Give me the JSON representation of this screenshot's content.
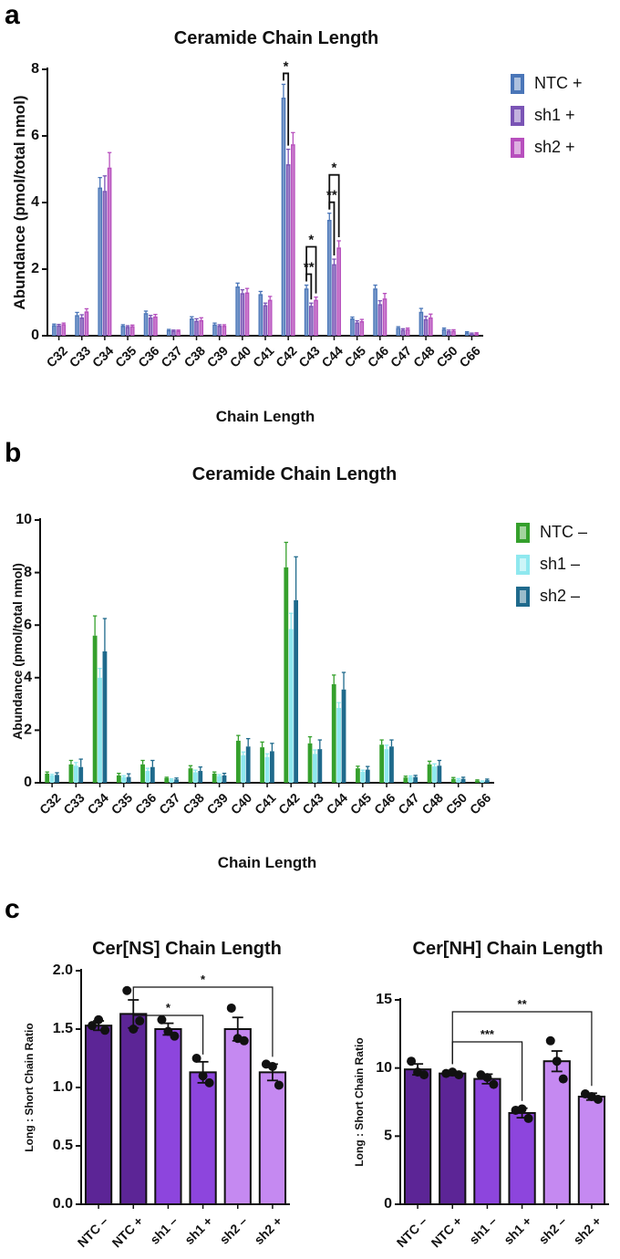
{
  "panels": [
    {
      "letter": "a"
    },
    {
      "letter": "b"
    },
    {
      "letter": "c"
    }
  ],
  "colors": {
    "NTC_plus": "#4a76b8",
    "sh1_plus": "#7a54b5",
    "sh2_plus": "#b74fbd",
    "NTC_minus": "#35a02c",
    "sh1_minus": "#8fe8ef",
    "sh2_minus": "#1f6a8c",
    "c_bars": [
      "#5c2596",
      "#5c2596",
      "#8d45dd",
      "#8d45dd",
      "#c589f1",
      "#c589f1"
    ]
  },
  "chart_data": [
    {
      "type": "bar",
      "title": "Ceramide Chain Length",
      "xlabel": "Chain Length",
      "ylabel": "Abundance (pmol/total nmol)",
      "ylim": [
        0,
        8
      ],
      "yticks": [
        "0",
        "2",
        "4",
        "6",
        "8"
      ],
      "categories": [
        "C32",
        "C33",
        "C34",
        "C35",
        "C36",
        "C37",
        "C38",
        "C39",
        "C40",
        "C41",
        "C42",
        "C43",
        "C44",
        "C45",
        "C46",
        "C47",
        "C48",
        "C50",
        "C66"
      ],
      "legend": "top-right",
      "series": [
        {
          "name": "NTC +",
          "values": [
            0.32,
            0.62,
            4.45,
            0.3,
            0.68,
            0.17,
            0.52,
            0.34,
            1.48,
            1.25,
            7.15,
            1.42,
            3.48,
            0.52,
            1.42,
            0.24,
            0.72,
            0.2,
            0.1
          ],
          "errors": [
            0.03,
            0.08,
            0.3,
            0.03,
            0.06,
            0.02,
            0.05,
            0.04,
            0.1,
            0.08,
            0.4,
            0.1,
            0.2,
            0.04,
            0.1,
            0.03,
            0.1,
            0.03,
            0.02
          ]
        },
        {
          "name": "sh1 +",
          "values": [
            0.31,
            0.55,
            4.35,
            0.27,
            0.55,
            0.15,
            0.45,
            0.3,
            1.28,
            0.92,
            5.15,
            0.9,
            2.15,
            0.4,
            0.95,
            0.18,
            0.5,
            0.14,
            0.06
          ],
          "errors": [
            0.03,
            0.08,
            0.45,
            0.03,
            0.06,
            0.02,
            0.06,
            0.03,
            0.1,
            0.06,
            0.45,
            0.08,
            0.15,
            0.05,
            0.1,
            0.03,
            0.08,
            0.03,
            0.02
          ]
        },
        {
          "name": "sh2 +",
          "values": [
            0.35,
            0.73,
            5.05,
            0.29,
            0.58,
            0.15,
            0.47,
            0.3,
            1.3,
            1.08,
            5.75,
            1.08,
            2.65,
            0.44,
            1.12,
            0.2,
            0.55,
            0.15,
            0.07
          ],
          "errors": [
            0.03,
            0.08,
            0.45,
            0.03,
            0.06,
            0.02,
            0.07,
            0.03,
            0.12,
            0.1,
            0.35,
            0.08,
            0.2,
            0.05,
            0.15,
            0.03,
            0.1,
            0.03,
            0.02
          ]
        }
      ],
      "significance": [
        {
          "category": "C42",
          "from": "NTC +",
          "to": "sh1 +",
          "label": "*"
        },
        {
          "category": "C43",
          "from": "NTC +",
          "to": "sh1 +",
          "label": "**"
        },
        {
          "category": "C43",
          "from": "NTC +",
          "to": "sh2 +",
          "label": "*"
        },
        {
          "category": "C44",
          "from": "NTC +",
          "to": "sh1 +",
          "label": "**"
        },
        {
          "category": "C44",
          "from": "NTC +",
          "to": "sh2 +",
          "label": "*"
        }
      ]
    },
    {
      "type": "bar",
      "title": "Ceramide Chain Length",
      "xlabel": "Chain Length",
      "ylabel": "Abundance (pmol/total nmol)",
      "ylim": [
        0,
        10
      ],
      "yticks": [
        "0",
        "2",
        "4",
        "6",
        "8",
        "10"
      ],
      "categories": [
        "C32",
        "C33",
        "C34",
        "C35",
        "C36",
        "C37",
        "C38",
        "C39",
        "C40",
        "C41",
        "C42",
        "C43",
        "C44",
        "C45",
        "C46",
        "C47",
        "C48",
        "C50",
        "C66"
      ],
      "legend": "top-right",
      "series": [
        {
          "name": "NTC –",
          "values": [
            0.35,
            0.7,
            5.6,
            0.28,
            0.7,
            0.18,
            0.55,
            0.35,
            1.6,
            1.35,
            8.2,
            1.5,
            3.75,
            0.55,
            1.45,
            0.2,
            0.7,
            0.15,
            0.08
          ],
          "errors": [
            0.06,
            0.15,
            0.75,
            0.08,
            0.15,
            0.03,
            0.1,
            0.06,
            0.2,
            0.2,
            0.95,
            0.25,
            0.35,
            0.08,
            0.18,
            0.05,
            0.12,
            0.05,
            0.03
          ]
        },
        {
          "name": "sh1 –",
          "values": [
            0.28,
            0.65,
            4.0,
            0.22,
            0.45,
            0.12,
            0.4,
            0.26,
            1.05,
            0.98,
            5.85,
            1.1,
            2.85,
            0.42,
            1.28,
            0.22,
            0.62,
            0.12,
            0.05
          ],
          "errors": [
            0.04,
            0.12,
            0.35,
            0.05,
            0.1,
            0.03,
            0.08,
            0.05,
            0.12,
            0.12,
            0.6,
            0.15,
            0.2,
            0.06,
            0.15,
            0.04,
            0.1,
            0.04,
            0.02
          ]
        },
        {
          "name": "sh2 –",
          "values": [
            0.3,
            0.6,
            5.0,
            0.22,
            0.6,
            0.13,
            0.45,
            0.28,
            1.38,
            1.2,
            6.95,
            1.28,
            3.55,
            0.5,
            1.38,
            0.22,
            0.65,
            0.15,
            0.1
          ],
          "errors": [
            0.08,
            0.3,
            1.25,
            0.12,
            0.25,
            0.05,
            0.15,
            0.08,
            0.3,
            0.3,
            1.65,
            0.35,
            0.65,
            0.12,
            0.25,
            0.06,
            0.2,
            0.06,
            0.04
          ]
        }
      ]
    },
    {
      "type": "bar",
      "title": "Cer[NS] Chain Length",
      "xlabel": "",
      "ylabel": "Long : Short Chain Ratio",
      "ylim": [
        0,
        2.0
      ],
      "yticks": [
        "0.0",
        "0.5",
        "1.0",
        "1.5",
        "2.0"
      ],
      "categories": [
        "NTC –",
        "NTC +",
        "sh1 –",
        "sh1 +",
        "sh2 –",
        "sh2 +"
      ],
      "values": [
        1.53,
        1.63,
        1.5,
        1.13,
        1.5,
        1.13
      ],
      "errors": [
        0.04,
        0.12,
        0.05,
        0.09,
        0.1,
        0.07
      ],
      "points": [
        [
          1.53,
          1.58,
          1.49
        ],
        [
          1.83,
          1.5,
          1.57
        ],
        [
          1.58,
          1.48,
          1.44
        ],
        [
          1.25,
          1.1,
          1.04
        ],
        [
          1.68,
          1.42,
          1.4
        ],
        [
          1.2,
          1.18,
          1.02
        ]
      ],
      "significance": [
        {
          "from": "NTC +",
          "to": "sh1 +",
          "label": "*"
        },
        {
          "from": "NTC +",
          "to": "sh2 +",
          "label": "*"
        }
      ]
    },
    {
      "type": "bar",
      "title": "Cer[NH] Chain Length",
      "xlabel": "",
      "ylabel": "Long : Short Chain Ratio",
      "ylim": [
        0,
        15
      ],
      "yticks": [
        "0",
        "5",
        "10",
        "15"
      ],
      "categories": [
        "NTC –",
        "NTC +",
        "sh1 –",
        "sh1 +",
        "sh2 –",
        "sh2 +"
      ],
      "values": [
        9.9,
        9.6,
        9.2,
        6.7,
        10.5,
        7.9
      ],
      "errors": [
        0.4,
        0.15,
        0.35,
        0.35,
        0.75,
        0.25
      ],
      "points": [
        [
          10.5,
          9.7,
          9.5
        ],
        [
          9.6,
          9.7,
          9.5
        ],
        [
          9.5,
          9.3,
          8.8
        ],
        [
          6.9,
          7.0,
          6.3
        ],
        [
          12.0,
          10.5,
          9.2
        ],
        [
          8.1,
          7.9,
          7.7
        ]
      ],
      "significance": [
        {
          "from": "NTC +",
          "to": "sh1 +",
          "label": "***"
        },
        {
          "from": "NTC +",
          "to": "sh2 +",
          "label": "**"
        }
      ]
    }
  ]
}
